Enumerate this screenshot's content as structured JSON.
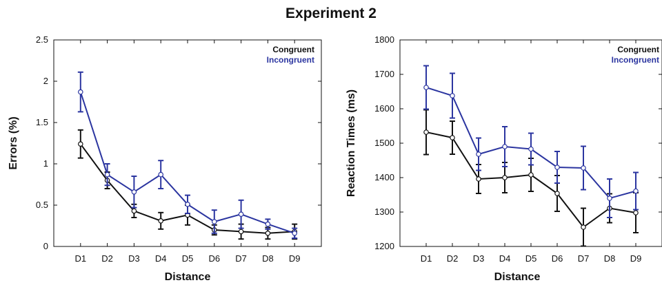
{
  "figure_title": "Experiment 2",
  "colors": {
    "congruent": "#111111",
    "incongruent": "#2b35a0"
  },
  "chart_data": [
    {
      "type": "line",
      "xlabel": "Distance",
      "ylabel": "Errors (%)",
      "categories": [
        "D1",
        "D2",
        "D3",
        "D4",
        "D5",
        "D6",
        "D7",
        "D8",
        "D9"
      ],
      "ylim": [
        0,
        2.5
      ],
      "yticks": [
        "0",
        "0.5",
        "1",
        "1.5",
        "2",
        "2.5"
      ],
      "legend_position": "top-right",
      "grid": false,
      "series": [
        {
          "name": "Congruent",
          "color_key": "congruent",
          "values": [
            1.24,
            0.8,
            0.43,
            0.31,
            0.38,
            0.2,
            0.18,
            0.16,
            0.18
          ],
          "err": [
            0.17,
            0.1,
            0.08,
            0.1,
            0.12,
            0.06,
            0.09,
            0.07,
            0.09
          ]
        },
        {
          "name": "Incongruent",
          "color_key": "incongruent",
          "values": [
            1.87,
            0.87,
            0.66,
            0.87,
            0.51,
            0.3,
            0.39,
            0.27,
            0.16
          ],
          "err": [
            0.24,
            0.13,
            0.19,
            0.17,
            0.11,
            0.14,
            0.17,
            0.06,
            0.06
          ]
        }
      ]
    },
    {
      "type": "line",
      "xlabel": "Distance",
      "ylabel": "Reaction Times (ms)",
      "categories": [
        "D1",
        "D2",
        "D3",
        "D4",
        "D5",
        "D6",
        "D7",
        "D8",
        "D9"
      ],
      "ylim": [
        1200,
        1800
      ],
      "yticks": [
        "1200",
        "1300",
        "1400",
        "1500",
        "1600",
        "1700",
        "1800"
      ],
      "legend_position": "top-right",
      "grid": false,
      "series": [
        {
          "name": "Congruent",
          "color_key": "congruent",
          "values": [
            1532,
            1516,
            1396,
            1400,
            1408,
            1354,
            1256,
            1311,
            1298
          ],
          "err": [
            65,
            48,
            42,
            44,
            48,
            52,
            55,
            42,
            58
          ]
        },
        {
          "name": "Incongruent",
          "color_key": "incongruent",
          "values": [
            1662,
            1638,
            1468,
            1490,
            1483,
            1430,
            1428,
            1340,
            1361
          ],
          "err": [
            63,
            65,
            47,
            58,
            46,
            46,
            63,
            56,
            54
          ]
        }
      ]
    }
  ]
}
